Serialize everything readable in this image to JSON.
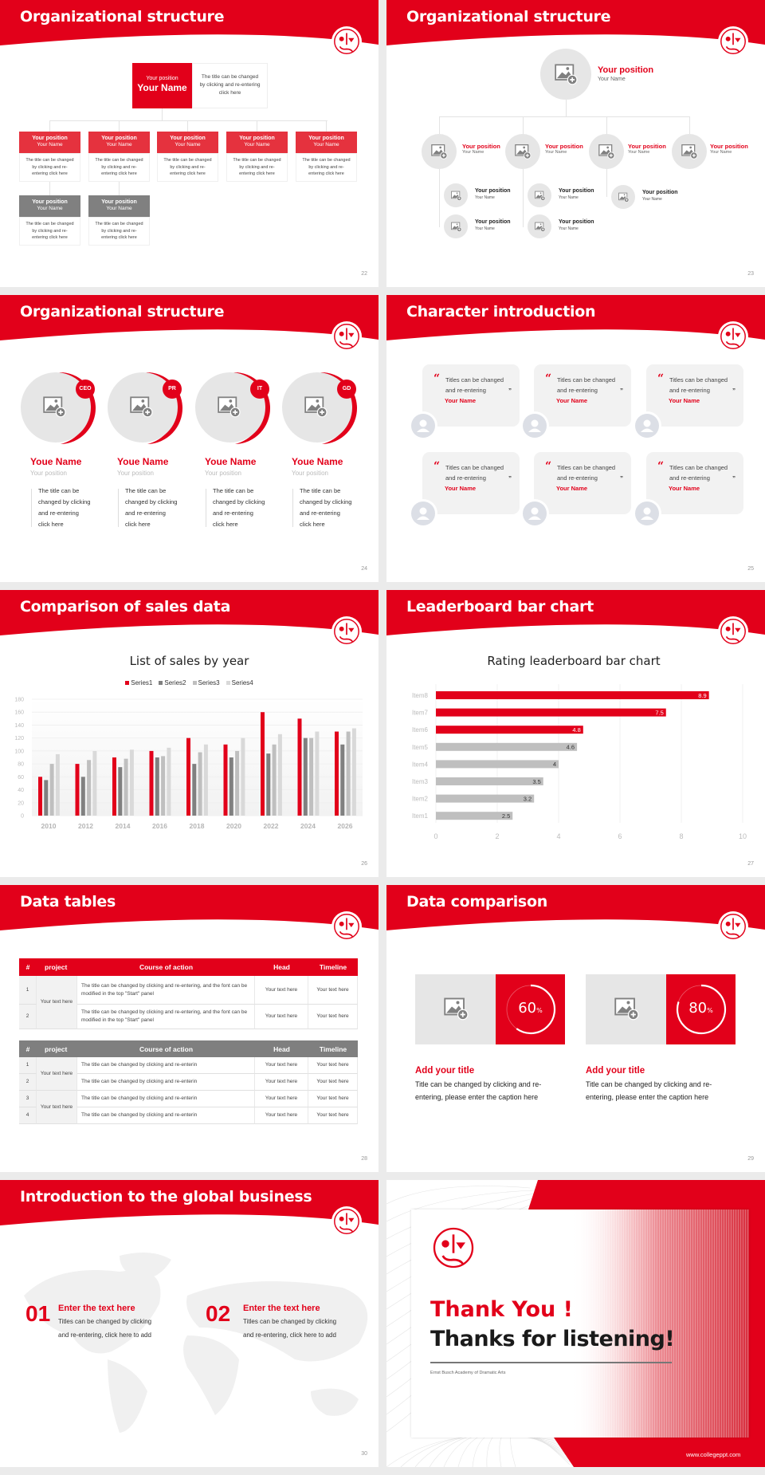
{
  "colors": {
    "accent": "#e2001a",
    "gray": "#7f7f7f",
    "light": "#f2f2f2"
  },
  "slide22": {
    "title": "Organizational structure",
    "page": "22",
    "top": {
      "position": "Your position",
      "name": "Your Name",
      "desc": "The title can be changed by clicking and re-entering click here"
    },
    "row1": [
      {
        "position": "Your position",
        "name": "Your Name",
        "desc": "The title can be changed by clicking and re-entering click here"
      },
      {
        "position": "Your position",
        "name": "Your Name",
        "desc": "The title can be changed by clicking and re-entering click here"
      },
      {
        "position": "Your position",
        "name": "Your Name",
        "desc": "The title can be changed by clicking and re-entering click here"
      },
      {
        "position": "Your position",
        "name": "Your Name",
        "desc": "The title can be changed by clicking and re-entering click here"
      },
      {
        "position": "Your position",
        "name": "Your Name",
        "desc": "The title can be changed by clicking and re-entering click here"
      }
    ],
    "row2": [
      {
        "position": "Your position",
        "name": "Your Name",
        "desc": "The title can be changed by clicking and re-entering click here"
      },
      {
        "position": "Your position",
        "name": "Your Name",
        "desc": "The title can be changed by clicking and re-entering click here"
      }
    ]
  },
  "slide23": {
    "title": "Organizational structure",
    "page": "23",
    "top": {
      "position": "Your position",
      "name": "Your Name"
    },
    "level2": [
      {
        "position": "Your position",
        "name": "Your Name"
      },
      {
        "position": "Your position",
        "name": "Your Name"
      },
      {
        "position": "Your position",
        "name": "Your Name"
      },
      {
        "position": "Your position",
        "name": "Your Name"
      }
    ],
    "level3": [
      {
        "position": "Your position",
        "name": "Your Name"
      },
      {
        "position": "Your position",
        "name": "Your Name"
      },
      {
        "position": "Your position",
        "name": "Your Name"
      },
      {
        "position": "Your position",
        "name": "Your Name"
      },
      {
        "position": "Your position",
        "name": "Your Name"
      }
    ]
  },
  "slide24": {
    "title": "Organizational structure",
    "page": "24",
    "members": [
      {
        "badge": "CEO",
        "name": "Youe Name",
        "position": "Your position",
        "desc": [
          "The title can be",
          "changed by clicking",
          "and re-entering",
          "click here"
        ]
      },
      {
        "badge": "PR",
        "name": "Youe Name",
        "position": "Your position",
        "desc": [
          "The title can be",
          "changed by clicking",
          "and re-entering",
          "click here"
        ]
      },
      {
        "badge": "IT",
        "name": "Youe Name",
        "position": "Your position",
        "desc": [
          "The title can be",
          "changed by clicking",
          "and re-entering",
          "click here"
        ]
      },
      {
        "badge": "GD",
        "name": "Youe Name",
        "position": "Your position",
        "desc": [
          "The title can be",
          "changed by clicking",
          "and re-entering",
          "click here"
        ]
      }
    ]
  },
  "slide25": {
    "title": "Character introduction",
    "page": "25",
    "cards": [
      {
        "text": [
          "Titles can be changed",
          "and re-entering"
        ],
        "name": "Your Name"
      },
      {
        "text": [
          "Titles can be changed",
          "and re-entering"
        ],
        "name": "Your Name"
      },
      {
        "text": [
          "Titles can be changed",
          "and re-entering"
        ],
        "name": "Your Name"
      },
      {
        "text": [
          "Titles can be changed",
          "and re-entering"
        ],
        "name": "Your Name"
      },
      {
        "text": [
          "Titles can be changed",
          "and re-entering"
        ],
        "name": "Your Name"
      },
      {
        "text": [
          "Titles can be changed",
          "and re-entering"
        ],
        "name": "Your Name"
      }
    ]
  },
  "slide26": {
    "title": "Comparison of sales data",
    "page": "26"
  },
  "slide27": {
    "title": "Leaderboard bar chart",
    "page": "27"
  },
  "slide28": {
    "title": "Data tables",
    "page": "28",
    "headers": [
      "#",
      "project",
      "Course of action",
      "Head",
      "Timeline"
    ],
    "table1": {
      "project": "Your text here",
      "rows": [
        {
          "num": "1",
          "course": "The title can be changed by clicking and re-entering, and the font can be modified in the top \"Start\" panel",
          "head": "Your text here",
          "timeline": "Your text here"
        },
        {
          "num": "2",
          "course": "The title can be changed by clicking and re-entering, and the font can be modified in the top \"Start\" panel",
          "head": "Your text here",
          "timeline": "Your text here"
        }
      ]
    },
    "table2": {
      "projects": [
        "Your text here",
        "Your text here"
      ],
      "rows": [
        {
          "num": "1",
          "course": "The title can be changed by clicking and re-enterin",
          "head": "Your text here",
          "timeline": "Your text here"
        },
        {
          "num": "2",
          "course": "The title can be changed by clicking and re-enterin",
          "head": "Your text here",
          "timeline": "Your text here"
        },
        {
          "num": "3",
          "course": "The title can be changed by clicking and re-enterin",
          "head": "Your text here",
          "timeline": "Your text here"
        },
        {
          "num": "4",
          "course": "The title can be changed by clicking and re-enterin",
          "head": "Your text here",
          "timeline": "Your text here"
        }
      ]
    }
  },
  "slide29": {
    "title": "Data comparison",
    "page": "29",
    "items": [
      {
        "percent": 60,
        "value": "60",
        "unit": "%",
        "title": "Add your title",
        "desc": [
          "Title can be changed by clicking and re-",
          "entering, please enter the caption here"
        ]
      },
      {
        "percent": 80,
        "value": "80",
        "unit": "%",
        "title": "Add your title",
        "desc": [
          "Title can be changed by clicking and re-",
          "entering, please enter the caption here"
        ]
      }
    ]
  },
  "slide30": {
    "title": "Introduction to the global business",
    "page": "30",
    "items": [
      {
        "num": "01",
        "title": "Enter the text here",
        "desc": [
          "Titles can be changed by clicking",
          "and re-entering, click here to add"
        ]
      },
      {
        "num": "02",
        "title": "Enter the text here",
        "desc": [
          "Titles can be changed by clicking",
          "and re-entering, click here to add"
        ]
      }
    ]
  },
  "slide31": {
    "thank": "Thank You !",
    "thanks": "Thanks for listening!",
    "school": "Ernst Busch Academy of Dramatic Arts",
    "url": "www.collegeppt.com"
  },
  "chart_data": [
    {
      "type": "bar",
      "title": "List of sales by year",
      "categories": [
        "2010",
        "2012",
        "2014",
        "2016",
        "2018",
        "2020",
        "2022",
        "2024",
        "2026"
      ],
      "series": [
        {
          "name": "Series1",
          "color": "#e2001a",
          "values": [
            60,
            80,
            90,
            100,
            120,
            110,
            160,
            150,
            130
          ]
        },
        {
          "name": "Series2",
          "color": "#808080",
          "values": [
            55,
            60,
            75,
            90,
            80,
            90,
            96,
            120,
            110
          ]
        },
        {
          "name": "Series3",
          "color": "#bfbfbf",
          "values": [
            80,
            86,
            88,
            92,
            98,
            100,
            110,
            120,
            130
          ]
        },
        {
          "name": "Series4",
          "color": "#d9d9d9",
          "values": [
            95,
            100,
            102,
            105,
            110,
            120,
            126,
            130,
            135
          ]
        }
      ],
      "ylim": [
        0,
        180
      ],
      "yticks": [
        "0",
        "20",
        "40",
        "60",
        "80",
        "100",
        "120",
        "140",
        "160",
        "180"
      ],
      "grid": true,
      "legend": "top"
    },
    {
      "type": "bar",
      "orientation": "horizontal",
      "title": "Rating leaderboard bar chart",
      "categories": [
        "Item8",
        "Item7",
        "Item6",
        "Item5",
        "Item4",
        "Item3",
        "Item2",
        "Item1"
      ],
      "values": [
        8.9,
        7.5,
        4.8,
        4.6,
        4,
        3.5,
        3.2,
        2.5
      ],
      "labels": [
        "8.9",
        "7.5",
        "4.8",
        "4.6",
        "4",
        "3.5",
        "3.2",
        "2.5"
      ],
      "colors": [
        "#e2001a",
        "#e2001a",
        "#e2001a",
        "#bfbfbf",
        "#bfbfbf",
        "#bfbfbf",
        "#bfbfbf",
        "#bfbfbf"
      ],
      "xlim": [
        0,
        10
      ],
      "xticks": [
        "0",
        "2",
        "4",
        "6",
        "8",
        "10"
      ],
      "grid": true
    }
  ]
}
